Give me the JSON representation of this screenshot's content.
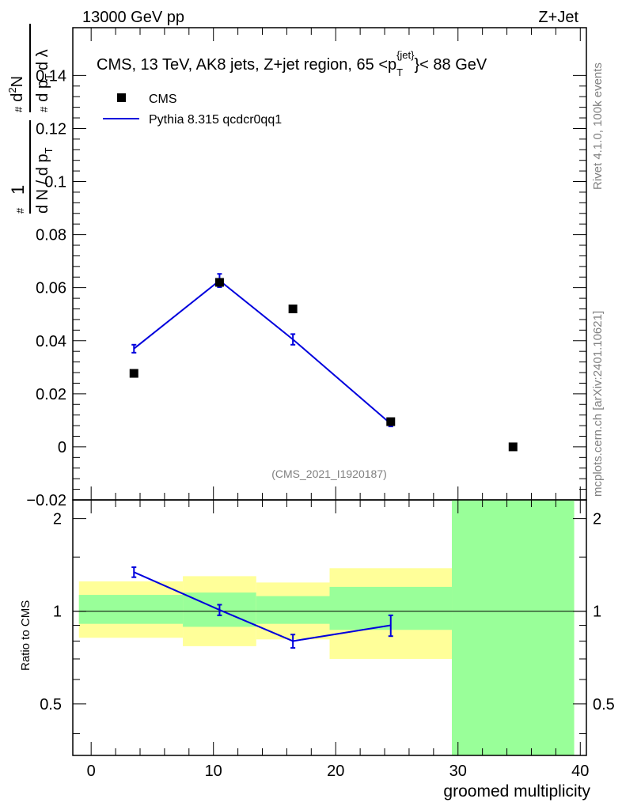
{
  "header": {
    "left": "13000 GeV pp",
    "right": "Z+Jet"
  },
  "side_labels": {
    "rivet": "Rivet 4.1.0,  100k events",
    "mcplots": "mcplots.cern.ch [arXiv:2401.10621]"
  },
  "chart_data": [
    {
      "type": "scatter",
      "title": "CMS, 13 TeV, AK8 jets, Z+jet region, 65 <p_T^{jet}< 88 GeV",
      "title_parts": {
        "before": "CMS, 13 TeV, AK8 jets, Z+jet region, 65 <p",
        "sub": "T",
        "sup": "{jet}",
        "after": "}< 88 GeV"
      },
      "ylabel": "1/dN/dp_T d²N/dp_T dλ",
      "ylabel_parts": {
        "a": "1",
        "b": "d N / d p",
        "c": "d",
        "d": "N",
        "e": "d p",
        "f": "d λ",
        "g": "T",
        "sup2": "2",
        "hash": "#"
      },
      "watermark": "(CMS_2021_I1920187)",
      "xlim": [
        -1.5,
        40.5
      ],
      "ylim": [
        -0.02,
        0.158
      ],
      "yticks": [
        -0.02,
        0,
        0.02,
        0.04,
        0.06,
        0.08,
        0.1,
        0.12,
        0.14
      ],
      "ytick_labels": [
        "−0.02",
        "0",
        "0.02",
        "0.04",
        "0.06",
        "0.08",
        "0.1",
        "0.12",
        "0.14"
      ],
      "legend": {
        "placement": "top-left",
        "cms": "CMS",
        "pythia": "Pythia 8.315 qcdcr0qq1"
      },
      "series": [
        {
          "name": "CMS",
          "marker": "square",
          "color": "#000000",
          "x": [
            3.5,
            10.5,
            16.5,
            24.5,
            34.5
          ],
          "y": [
            0.0277,
            0.062,
            0.052,
            0.0095,
            0.0
          ]
        },
        {
          "name": "Pythia 8.315 qcdcr0qq1",
          "marker": "line",
          "color": "#0000dd",
          "x": [
            3.5,
            10.5,
            16.5,
            24.5
          ],
          "y": [
            0.037,
            0.0627,
            0.0405,
            0.0087
          ],
          "yerr": [
            0.0015,
            0.0025,
            0.002,
            0.001
          ]
        }
      ]
    },
    {
      "type": "line",
      "ylabel": "Ratio to CMS",
      "xlabel": "groomed multiplicity",
      "scale": "log",
      "xlim": [
        -1.5,
        40.5
      ],
      "ylim": [
        0.34,
        2.3
      ],
      "xticks": [
        0,
        10,
        20,
        30,
        40
      ],
      "yticks": [
        0.5,
        1,
        2
      ],
      "ytick_labels": [
        "0.5",
        "1",
        "2"
      ],
      "bands": [
        {
          "x0": -1,
          "x1": 7.5,
          "yellow": [
            0.82,
            1.25
          ],
          "green": [
            0.91,
            1.13
          ]
        },
        {
          "x0": 7.5,
          "x1": 13.5,
          "yellow": [
            0.77,
            1.3
          ],
          "green": [
            0.89,
            1.15
          ]
        },
        {
          "x0": 13.5,
          "x1": 19.5,
          "yellow": [
            0.81,
            1.24
          ],
          "green": [
            0.91,
            1.12
          ]
        },
        {
          "x0": 19.5,
          "x1": 29.5,
          "yellow": [
            0.7,
            1.38
          ],
          "green": [
            0.87,
            1.2
          ]
        },
        {
          "x0": 29.5,
          "x1": 39.5,
          "yellow": [
            0.34,
            2.3
          ],
          "green": [
            0.34,
            2.3
          ]
        }
      ],
      "series": [
        {
          "name": "Pythia 8.315 qcdcr0qq1",
          "color": "#0000dd",
          "x": [
            3.5,
            10.5,
            16.5,
            24.5
          ],
          "y": [
            1.34,
            1.01,
            0.8,
            0.9
          ],
          "yerr": [
            0.05,
            0.04,
            0.04,
            0.07
          ]
        }
      ],
      "colors": {
        "yellow": "#ffff99",
        "green": "#99ff99",
        "line": "#0000dd"
      }
    }
  ]
}
